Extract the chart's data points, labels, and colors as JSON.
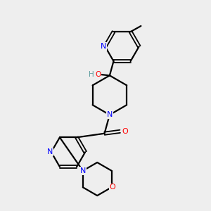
{
  "bg_color": "#eeeeee",
  "bond_color": "#000000",
  "N_color": "#0000ff",
  "O_color": "#ff0000",
  "HO_H_color": "#5f9ea0",
  "HO_O_color": "#ff0000",
  "figsize": [
    3.0,
    3.0
  ],
  "dpi": 100,
  "xlim": [
    0,
    10
  ],
  "ylim": [
    0,
    10
  ]
}
